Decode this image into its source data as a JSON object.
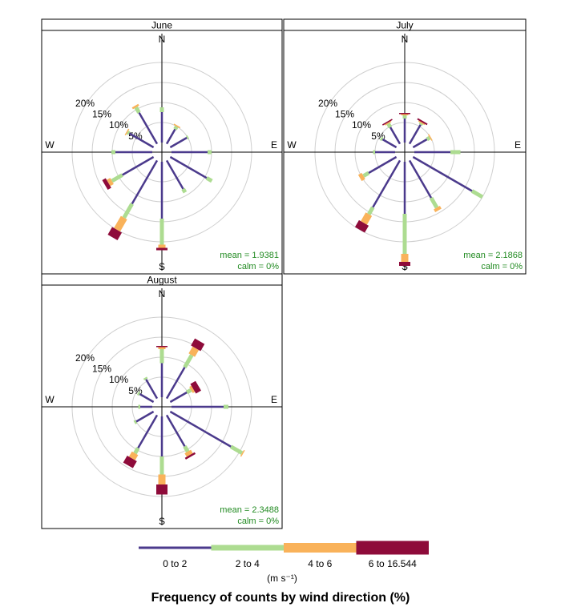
{
  "chart_data": {
    "type": "polar",
    "title": "Frequency of counts by wind direction (%)",
    "legend": {
      "unit": "(m s⁻¹)",
      "position": "bottom",
      "bins": [
        {
          "label": "0 to 2",
          "color": "#4B3A8C"
        },
        {
          "label": "2 to 4",
          "color": "#ADDC91"
        },
        {
          "label": "4 to 6",
          "color": "#F9B25A"
        },
        {
          "label": "6 to 16.544",
          "color": "#8E0B3A"
        }
      ]
    },
    "compass": {
      "n": "N",
      "e": "E",
      "s": "S",
      "w": "W"
    },
    "radial_ticks": [
      5,
      10,
      15,
      20
    ],
    "radial_tick_labels": [
      "5%",
      "10%",
      "15%",
      "20%"
    ],
    "directions_deg": [
      0,
      30,
      60,
      90,
      120,
      150,
      180,
      210,
      240,
      270,
      300,
      330
    ],
    "panels": [
      {
        "strip": "June",
        "mean_text": "mean = 1.9381",
        "calm_text": "calm = 0%",
        "stacks": [
          [
            7.6,
            1.2,
            0,
            0
          ],
          [
            4.2,
            0.8,
            0.3,
            0
          ],
          [
            4.8,
            0.4,
            0,
            0
          ],
          [
            9.0,
            1.0,
            0,
            0
          ],
          [
            10.5,
            1.5,
            0,
            0
          ],
          [
            8.2,
            1.0,
            0,
            0
          ],
          [
            14.2,
            6.5,
            0.8,
            0.6
          ],
          [
            12.5,
            4.0,
            3.5,
            2.2
          ],
          [
            9.0,
            3.0,
            1.0,
            1.0
          ],
          [
            9.2,
            1.0,
            0,
            0
          ],
          [
            7.0,
            0.5,
            0.3,
            0
          ],
          [
            9.0,
            1.5,
            0.5,
            0
          ]
        ]
      },
      {
        "strip": "July",
        "mean_text": "mean = 2.1868",
        "calm_text": "calm = 0%",
        "stacks": [
          [
            6.0,
            0.8,
            0.3,
            0.3
          ],
          [
            5.5,
            0.4,
            0.3,
            0.4
          ],
          [
            4.0,
            0.8,
            0.3,
            0
          ],
          [
            9.0,
            2.5,
            0,
            0
          ],
          [
            17.0,
            3.0,
            0,
            0
          ],
          [
            10.8,
            2.8,
            0.8,
            0
          ],
          [
            13.0,
            10.0,
            2.0,
            1.0
          ],
          [
            13.5,
            2.0,
            2.5,
            2.0
          ],
          [
            8.0,
            1.5,
            1.0,
            0
          ],
          [
            5.0,
            0.5,
            0,
            0
          ],
          [
            4.0,
            0.5,
            0,
            0
          ],
          [
            4.8,
            1.0,
            0.3,
            0.3
          ]
        ]
      },
      {
        "strip": "August",
        "mean_text": "mean = 2.3488",
        "calm_text": "calm = 0%",
        "stacks": [
          [
            8.5,
            3.5,
            0.5,
            0.3
          ],
          [
            9.0,
            3.5,
            2.0,
            2.0
          ],
          [
            4.8,
            1.2,
            0.6,
            1.5
          ],
          [
            13.0,
            1.2,
            0,
            0
          ],
          [
            17.5,
            3.2,
            0.3,
            0
          ],
          [
            9.0,
            1.5,
            1.0,
            0.5
          ],
          [
            10.0,
            4.5,
            2.5,
            2.5
          ],
          [
            9.5,
            1.5,
            1.5,
            2.0
          ],
          [
            5.0,
            0.5,
            0,
            0
          ],
          [
            3.0,
            0.5,
            0,
            0
          ],
          [
            4.0,
            0.5,
            0,
            0
          ],
          [
            5.5,
            0.5,
            0,
            0
          ]
        ]
      }
    ]
  }
}
